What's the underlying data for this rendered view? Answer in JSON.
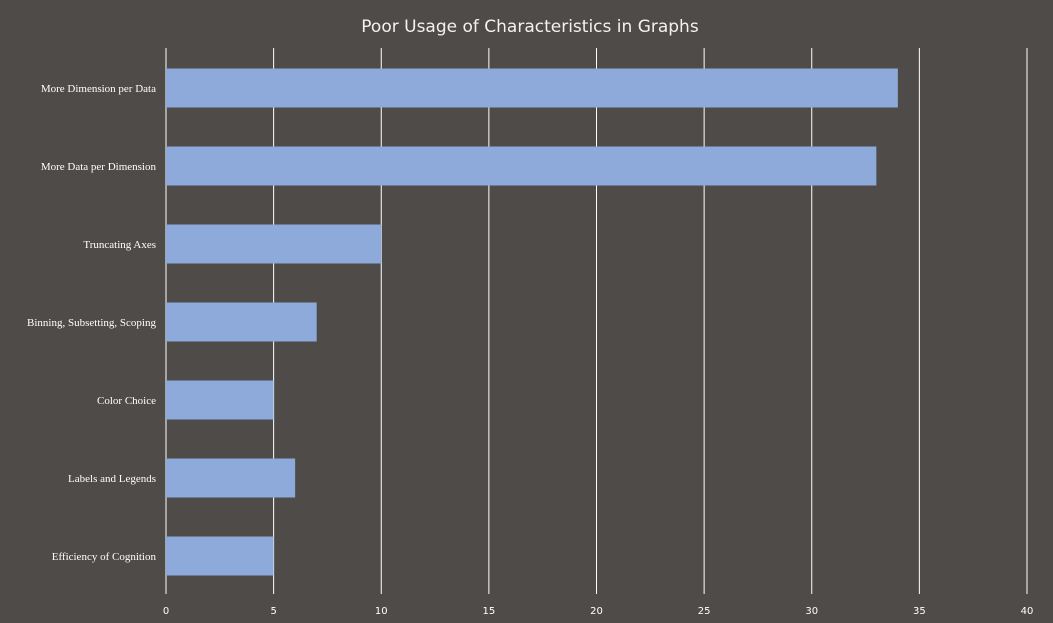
{
  "chart_data": {
    "type": "bar",
    "orientation": "horizontal",
    "title": "Poor Usage of Characteristics in Graphs",
    "xlabel": "",
    "ylabel": "",
    "categories": [
      "More Dimension per Data",
      "More Data per Dimension",
      "Truncating Axes",
      "Binning, Subsetting, Scoping",
      "Color Choice",
      "Labels and Legends",
      "Efficiency of Cognition"
    ],
    "values": [
      34,
      33,
      10,
      7,
      5,
      6,
      5
    ],
    "xlim": [
      0,
      40
    ],
    "xticks": [
      "0",
      "5",
      "10",
      "15",
      "20",
      "25",
      "30",
      "35",
      "40"
    ],
    "grid": "vertical",
    "legend": "none",
    "colors": {
      "background": "#4f4b48",
      "bar": "#8eaadb",
      "grid": "#ffffff",
      "text": "#ffffff"
    }
  }
}
